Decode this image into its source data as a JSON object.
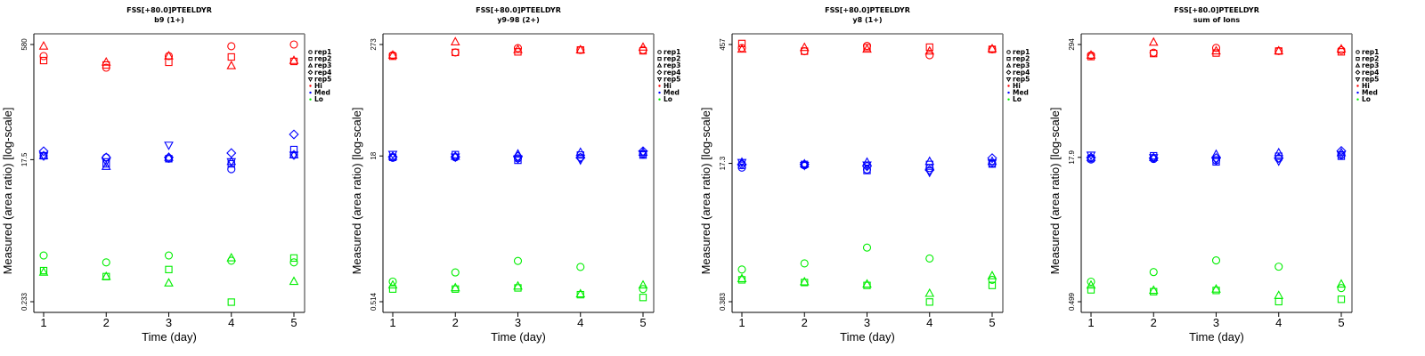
{
  "figure_colors": {
    "Hi": "#ff0000",
    "Med": "#0000ff",
    "Lo": "#00ee00"
  },
  "chart_data": [
    {
      "type": "scatter",
      "title": "FSS[+80.0]PTEELDYR",
      "subtitle": "b9 (1+)",
      "xlabel": "Time (day)",
      "ylabel": "Measured (area ratio) [log-scale]",
      "yscale": "log",
      "yticks": [
        580,
        17.5,
        0.233
      ],
      "ytick_labels": [
        "580",
        "17.5",
        "0.233"
      ],
      "x": [
        1,
        2,
        3,
        4,
        5
      ],
      "xtick_labels": [
        "1",
        "2",
        "3",
        "4",
        "5"
      ],
      "legend": [
        "rep1",
        "rep2",
        "rep3",
        "rep4",
        "rep5",
        "Hi",
        "Med",
        "Lo"
      ],
      "legend_position": "right",
      "series": [
        {
          "group": "Hi",
          "rep": "rep1",
          "values": [
            408,
            287,
            408,
            550,
            580
          ]
        },
        {
          "group": "Hi",
          "rep": "rep2",
          "values": [
            356,
            311,
            338,
            397,
            347
          ]
        },
        {
          "group": "Hi",
          "rep": "rep3",
          "values": [
            550,
            338,
            408,
            303,
            356
          ]
        },
        {
          "group": "Med",
          "rep": "rep1",
          "values": [
            19.7,
            18.7,
            18.0,
            13.1,
            20.2
          ]
        },
        {
          "group": "Med",
          "rep": "rep2",
          "values": [
            19.7,
            15.4,
            18.0,
            15.4,
            23.8
          ]
        },
        {
          "group": "Med",
          "rep": "rep3",
          "values": [
            19.7,
            14.2,
            18.7,
            16.5,
            20.2
          ]
        },
        {
          "group": "Med",
          "rep": "rep4",
          "values": [
            22.6,
            18.7,
            18.7,
            21.4,
            37.7
          ]
        },
        {
          "group": "Med",
          "rep": "rep5",
          "values": [
            19.7,
            16.5,
            27.3,
            16.5,
            20.2
          ]
        },
        {
          "group": "Lo",
          "rep": "rep1",
          "values": [
            0.95,
            0.77,
            0.95,
            0.81,
            0.77
          ]
        },
        {
          "group": "Lo",
          "rep": "rep2",
          "values": [
            0.6,
            0.5,
            0.62,
            0.23,
            0.88
          ]
        },
        {
          "group": "Lo",
          "rep": "rep3",
          "values": [
            0.57,
            0.5,
            0.41,
            0.88,
            0.43
          ]
        }
      ]
    },
    {
      "type": "scatter",
      "title": "FSS[+80.0]PTEELDYR",
      "subtitle": "y9-98 (2+)",
      "xlabel": "Time (day)",
      "ylabel": "Measured (area ratio) [log-scale]",
      "yscale": "log",
      "yticks": [
        273,
        18,
        0.514
      ],
      "ytick_labels": [
        "273",
        "18",
        "0.514"
      ],
      "x": [
        1,
        2,
        3,
        4,
        5
      ],
      "xtick_labels": [
        "1",
        "2",
        "3",
        "4",
        "5"
      ],
      "legend": [
        "rep1",
        "rep2",
        "rep3",
        "rep4",
        "rep5",
        "Hi",
        "Med",
        "Lo"
      ],
      "legend_position": "right",
      "series": [
        {
          "group": "Hi",
          "rep": "rep1",
          "values": [
            210,
            225,
            250,
            239,
            239
          ]
        },
        {
          "group": "Hi",
          "rep": "rep2",
          "values": [
            205,
            225,
            228,
            239,
            234
          ]
        },
        {
          "group": "Hi",
          "rep": "rep3",
          "values": [
            210,
            290,
            240,
            239,
            255
          ]
        },
        {
          "group": "Med",
          "rep": "rep1",
          "values": [
            17.2,
            17.4,
            17.0,
            17.4,
            18.8
          ]
        },
        {
          "group": "Med",
          "rep": "rep2",
          "values": [
            17.4,
            18.6,
            16.2,
            18.4,
            18.4
          ]
        },
        {
          "group": "Med",
          "rep": "rep3",
          "values": [
            17.8,
            17.8,
            18.8,
            19.6,
            19.6
          ]
        },
        {
          "group": "Med",
          "rep": "rep4",
          "values": [
            17.6,
            17.6,
            17.8,
            17.2,
            20.2
          ]
        },
        {
          "group": "Med",
          "rep": "rep5",
          "values": [
            18.8,
            17.6,
            16.8,
            16.4,
            19.0
          ]
        },
        {
          "group": "Lo",
          "rep": "rep1",
          "values": [
            0.84,
            1.05,
            1.39,
            1.2,
            0.7
          ]
        },
        {
          "group": "Lo",
          "rep": "rep2",
          "values": [
            0.7,
            0.7,
            0.72,
            0.61,
            0.57
          ]
        },
        {
          "group": "Lo",
          "rep": "rep3",
          "values": [
            0.77,
            0.72,
            0.75,
            0.62,
            0.77
          ]
        }
      ]
    },
    {
      "type": "scatter",
      "title": "FSS[+80.0]PTEELDYR",
      "subtitle": "y8 (1+)",
      "xlabel": "Time (day)",
      "ylabel": "Measured (area ratio) [log-scale]",
      "yscale": "log",
      "yticks": [
        457,
        17.3,
        0.383
      ],
      "ytick_labels": [
        "457",
        "17.3",
        "0.383"
      ],
      "x": [
        1,
        2,
        3,
        4,
        5
      ],
      "xtick_labels": [
        "1",
        "2",
        "3",
        "4",
        "5"
      ],
      "legend": [
        "rep1",
        "rep2",
        "rep3",
        "rep4",
        "rep5",
        "Hi",
        "Med",
        "Lo"
      ],
      "legend_position": "right",
      "series": [
        {
          "group": "Hi",
          "rep": "rep1",
          "values": [
            415,
            380,
            440,
            340,
            400
          ]
        },
        {
          "group": "Hi",
          "rep": "rep2",
          "values": [
            470,
            380,
            420,
            425,
            400
          ]
        },
        {
          "group": "Hi",
          "rep": "rep3",
          "values": [
            400,
            420,
            400,
            380,
            405
          ]
        },
        {
          "group": "Med",
          "rep": "rep1",
          "values": [
            15.4,
            16.4,
            14.6,
            15.2,
            17.2
          ]
        },
        {
          "group": "Med",
          "rep": "rep2",
          "values": [
            16.4,
            16.8,
            14.2,
            16.8,
            17.0
          ]
        },
        {
          "group": "Med",
          "rep": "rep3",
          "values": [
            17.8,
            17.0,
            17.8,
            18.2,
            18.2
          ]
        },
        {
          "group": "Med",
          "rep": "rep4",
          "values": [
            16.8,
            16.8,
            16.0,
            14.4,
            20.0
          ]
        },
        {
          "group": "Med",
          "rep": "rep5",
          "values": [
            17.8,
            16.4,
            16.6,
            13.6,
            17.6
          ]
        },
        {
          "group": "Lo",
          "rep": "rep1",
          "values": [
            0.93,
            1.1,
            1.7,
            1.26,
            0.7
          ]
        },
        {
          "group": "Lo",
          "rep": "rep2",
          "values": [
            0.7,
            0.65,
            0.6,
            0.38,
            0.6
          ]
        },
        {
          "group": "Lo",
          "rep": "rep3",
          "values": [
            0.72,
            0.66,
            0.62,
            0.48,
            0.78
          ]
        }
      ]
    },
    {
      "type": "scatter",
      "title": "FSS[+80.0]PTEELDYR",
      "subtitle": "sum of Ions",
      "xlabel": "Time (day)",
      "ylabel": "Measured (area ratio) [log-scale]",
      "yscale": "log",
      "yticks": [
        294,
        17.9,
        0.499
      ],
      "ytick_labels": [
        "294",
        "17.9",
        "0.499"
      ],
      "x": [
        1,
        2,
        3,
        4,
        5
      ],
      "xtick_labels": [
        "1",
        "2",
        "3",
        "4",
        "5"
      ],
      "legend": [
        "rep1",
        "rep2",
        "rep3",
        "rep4",
        "rep5",
        "Hi",
        "Med",
        "Lo"
      ],
      "legend_position": "right",
      "series": [
        {
          "group": "Hi",
          "rep": "rep1",
          "values": [
            225,
            240,
            270,
            250,
            255
          ]
        },
        {
          "group": "Hi",
          "rep": "rep2",
          "values": [
            218,
            235,
            238,
            250,
            245
          ]
        },
        {
          "group": "Hi",
          "rep": "rep3",
          "values": [
            225,
            310,
            250,
            250,
            262
          ]
        },
        {
          "group": "Med",
          "rep": "rep1",
          "values": [
            17.0,
            17.2,
            16.6,
            17.4,
            19.0
          ]
        },
        {
          "group": "Med",
          "rep": "rep2",
          "values": [
            17.4,
            18.6,
            16.0,
            18.4,
            18.4
          ]
        },
        {
          "group": "Med",
          "rep": "rep3",
          "values": [
            17.8,
            17.8,
            19.2,
            20.0,
            20.0
          ]
        },
        {
          "group": "Med",
          "rep": "rep4",
          "values": [
            17.8,
            17.6,
            17.6,
            17.6,
            21.0
          ]
        },
        {
          "group": "Med",
          "rep": "rep5",
          "values": [
            19.0,
            17.8,
            16.8,
            16.4,
            19.2
          ]
        },
        {
          "group": "Lo",
          "rep": "rep1",
          "values": [
            0.82,
            1.04,
            1.39,
            1.19,
            0.7
          ]
        },
        {
          "group": "Lo",
          "rep": "rep2",
          "values": [
            0.67,
            0.64,
            0.66,
            0.5,
            0.53
          ]
        },
        {
          "group": "Lo",
          "rep": "rep3",
          "values": [
            0.75,
            0.66,
            0.68,
            0.58,
            0.77
          ]
        }
      ]
    }
  ]
}
